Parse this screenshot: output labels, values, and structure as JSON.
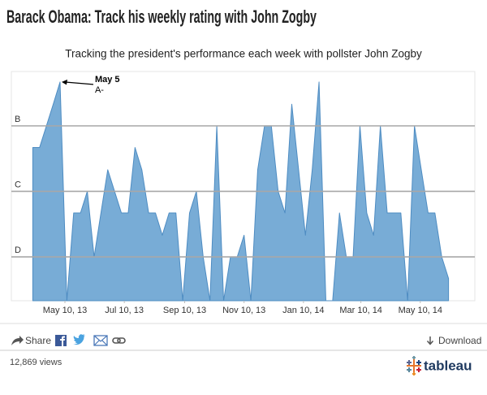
{
  "chart_data": {
    "type": "area",
    "title": "Barack Obama: Track his weekly rating with John Zogby",
    "subtitle": "Tracking the president's performance each week with pollster John Zogby",
    "x": [
      "2013-04-07",
      "2013-04-14",
      "2013-04-21",
      "2013-04-28",
      "2013-05-05",
      "2013-05-12",
      "2013-05-19",
      "2013-05-26",
      "2013-06-02",
      "2013-06-09",
      "2013-06-16",
      "2013-06-23",
      "2013-06-30",
      "2013-07-07",
      "2013-07-14",
      "2013-07-21",
      "2013-07-28",
      "2013-08-04",
      "2013-08-11",
      "2013-08-18",
      "2013-08-25",
      "2013-09-01",
      "2013-09-08",
      "2013-09-15",
      "2013-09-22",
      "2013-09-29",
      "2013-10-06",
      "2013-10-13",
      "2013-10-20",
      "2013-10-27",
      "2013-11-03",
      "2013-11-10",
      "2013-11-17",
      "2013-11-24",
      "2013-12-01",
      "2013-12-08",
      "2013-12-15",
      "2013-12-22",
      "2013-12-29",
      "2014-01-05",
      "2014-01-12",
      "2014-01-19",
      "2014-01-26",
      "2014-02-02",
      "2014-02-09",
      "2014-02-16",
      "2014-02-23",
      "2014-03-02",
      "2014-03-09",
      "2014-03-16",
      "2014-03-23",
      "2014-03-30",
      "2014-04-06",
      "2014-04-13",
      "2014-04-20",
      "2014-04-27",
      "2014-05-04",
      "2014-05-11",
      "2014-05-18",
      "2014-05-25",
      "2014-06-01",
      "2014-06-08"
    ],
    "values": [
      2.67,
      2.67,
      3.0,
      3.33,
      3.67,
      0.33,
      1.67,
      1.67,
      2.0,
      1.0,
      1.67,
      2.33,
      2.0,
      1.67,
      1.67,
      2.67,
      2.33,
      1.67,
      1.67,
      1.33,
      1.67,
      1.67,
      0.33,
      1.67,
      2.0,
      1.0,
      0.33,
      3.0,
      0.33,
      1.0,
      1.0,
      1.33,
      0.33,
      2.33,
      3.0,
      3.0,
      2.0,
      1.67,
      3.33,
      2.33,
      1.33,
      2.33,
      3.67,
      0.33,
      0.33,
      1.67,
      1.0,
      1.0,
      3.0,
      1.67,
      1.33,
      3.0,
      1.67,
      1.67,
      1.67,
      0.33,
      3.0,
      2.33,
      1.67,
      1.67,
      1.0,
      0.67
    ],
    "color": "#78acd6",
    "line_color": "#4e8cc2",
    "xlim": [
      "2013-03-16",
      "2014-07-05"
    ],
    "xticks": [
      {
        "value": "2013-05-10",
        "label": "May 10, 13"
      },
      {
        "value": "2013-07-10",
        "label": "Jul 10, 13"
      },
      {
        "value": "2013-09-10",
        "label": "Sep 10, 13"
      },
      {
        "value": "2013-11-10",
        "label": "Nov 10, 13"
      },
      {
        "value": "2014-01-10",
        "label": "Jan 10, 14"
      },
      {
        "value": "2014-03-10",
        "label": "Mar 10, 14"
      },
      {
        "value": "2014-05-10",
        "label": "May 10, 14"
      }
    ],
    "ylim": [
      0.33,
      3.83
    ],
    "yticks": [
      {
        "value": 1,
        "label": "D"
      },
      {
        "value": 2,
        "label": "C"
      },
      {
        "value": 3,
        "label": "B"
      }
    ],
    "grid": true,
    "annotation": {
      "index": 4,
      "title": "May 5",
      "text": "A-"
    }
  },
  "footer": {
    "share": "Share",
    "download": "Download",
    "views": "12,869 views",
    "brand": "tableau"
  }
}
